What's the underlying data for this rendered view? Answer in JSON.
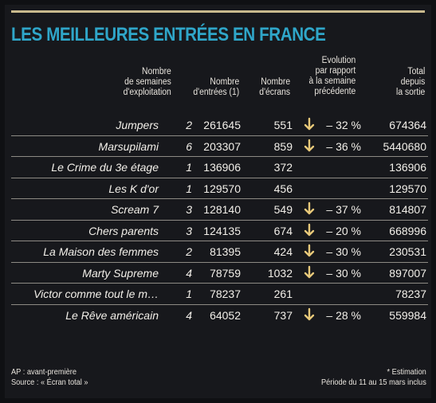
{
  "title": "LES MEILLEURES ENTRÉES EN FRANCE",
  "headers": {
    "weeks": [
      "Nombre",
      "de semaines",
      "d'exploitation"
    ],
    "entries": [
      "Nombre",
      "d'entrées (1)"
    ],
    "screens": [
      "Nombre",
      "d'écrans"
    ],
    "evolution": [
      "Evolution",
      "par rapport",
      "à la semaine",
      "précédente"
    ],
    "total": [
      "Total",
      "depuis",
      "la sortie"
    ]
  },
  "rows": [
    {
      "film": "Jumpers",
      "weeks": "2",
      "entries": "261645",
      "screens": "551",
      "down": true,
      "evolution": "– 32 %",
      "total": "674364"
    },
    {
      "film": "Marsupilami",
      "weeks": "6",
      "entries": "203307",
      "screens": "859",
      "down": true,
      "evolution": "– 36 %",
      "total": "5440680"
    },
    {
      "film": "Le Crime du 3e étage",
      "weeks": "1",
      "entries": "136906",
      "screens": "372",
      "down": false,
      "evolution": "",
      "total": "136906"
    },
    {
      "film": "Les K d'or",
      "weeks": "1",
      "entries": "129570",
      "screens": "456",
      "down": false,
      "evolution": "",
      "total": "129570"
    },
    {
      "film": "Scream 7",
      "weeks": "3",
      "entries": "128140",
      "screens": "549",
      "down": true,
      "evolution": "– 37 %",
      "total": "814807"
    },
    {
      "film": "Chers parents",
      "weeks": "3",
      "entries": "124135",
      "screens": "674",
      "down": true,
      "evolution": "– 20 %",
      "total": "668996"
    },
    {
      "film": "La Maison des femmes",
      "weeks": "2",
      "entries": "81395",
      "screens": "424",
      "down": true,
      "evolution": "– 30 %",
      "total": "230531"
    },
    {
      "film": "Marty Supreme",
      "weeks": "4",
      "entries": "78759",
      "screens": "1032",
      "down": true,
      "evolution": "– 30 %",
      "total": "897007"
    },
    {
      "film": "Victor comme tout le m…",
      "weeks": "1",
      "entries": "78237",
      "screens": "261",
      "down": false,
      "evolution": "",
      "total": "78237"
    },
    {
      "film": "Le Rêve américain",
      "weeks": "4",
      "entries": "64052",
      "screens": "737",
      "down": true,
      "evolution": "– 28 %",
      "total": "559984"
    }
  ],
  "footer": {
    "left": [
      "AP : avant-première",
      "Source : « Écran total »"
    ],
    "right": [
      "* Estimation",
      "Période du 11 au 15 mars inclus"
    ]
  },
  "colors": {
    "title": "#2fa6c9",
    "arrow": "#e8c97a"
  },
  "icons": {
    "evolution_down": "down-arrow-icon"
  }
}
